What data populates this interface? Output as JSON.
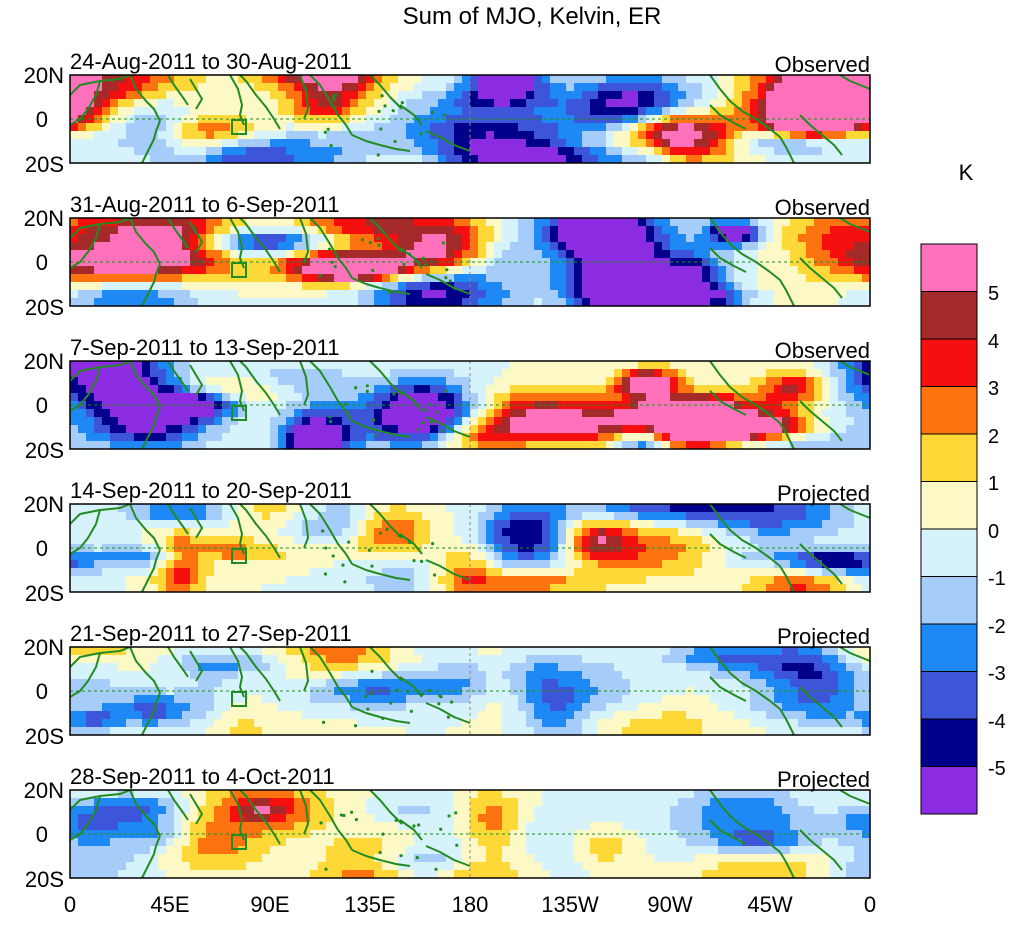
{
  "title": "Sum of MJO, Kelvin, ER",
  "colorbar": {
    "unit": "K",
    "colors": [
      "#8b2be2",
      "#00008b",
      "#3d55d8",
      "#1e88f5",
      "#a6ccfa",
      "#d6f2fa",
      "#fcf9c6",
      "#fdd836",
      "#fd7310",
      "#f50f0f",
      "#a52a2a",
      "#ff72bb"
    ],
    "tick_labels": [
      "-5",
      "-4",
      "-3",
      "-2",
      "-1",
      "0",
      "1",
      "2",
      "3",
      "4",
      "5"
    ]
  },
  "axis": {
    "x_tick_labels": [
      "0",
      "45E",
      "90E",
      "135E",
      "180",
      "135W",
      "90W",
      "45W",
      "0"
    ],
    "y_tick_labels": [
      "20N",
      "0",
      "20S"
    ]
  },
  "panels": [
    {
      "period": "24-Aug-2011 to 30-Aug-2011",
      "type": "Observed",
      "amp": 1.25,
      "seed": 3
    },
    {
      "period": "31-Aug-2011 to 6-Sep-2011",
      "type": "Observed",
      "amp": 1.15,
      "seed": 7
    },
    {
      "period": "7-Sep-2011 to 13-Sep-2011",
      "type": "Observed",
      "amp": 1.35,
      "seed": 11
    },
    {
      "period": "14-Sep-2011 to 20-Sep-2011",
      "type": "Projected",
      "amp": 0.7,
      "seed": 13
    },
    {
      "period": "21-Sep-2011 to 27-Sep-2011",
      "type": "Projected",
      "amp": 0.6,
      "seed": 17
    },
    {
      "period": "28-Sep-2011 to 4-Oct-2011",
      "type": "Projected",
      "amp": 0.5,
      "seed": 19
    }
  ],
  "map_features": {
    "coastline_color": "#228b22",
    "reference_line_color": "#228b22",
    "reference_box_color": "#228b22"
  }
}
